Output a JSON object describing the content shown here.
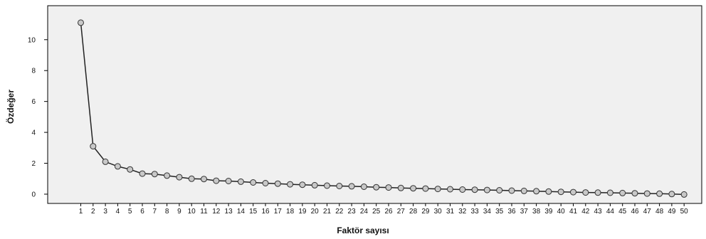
{
  "chart_data": {
    "type": "line",
    "title": "",
    "xlabel": "Faktör sayısı",
    "ylabel": "Özdeğer",
    "x": [
      1,
      2,
      3,
      4,
      5,
      6,
      7,
      8,
      9,
      10,
      11,
      12,
      13,
      14,
      15,
      16,
      17,
      18,
      19,
      20,
      21,
      22,
      23,
      24,
      25,
      26,
      27,
      28,
      29,
      30,
      31,
      32,
      33,
      34,
      35,
      36,
      37,
      38,
      39,
      40,
      41,
      42,
      43,
      44,
      45,
      46,
      47,
      48,
      49,
      50
    ],
    "x_ticks": [
      "1",
      "2",
      "3",
      "4",
      "5",
      "6",
      "7",
      "8",
      "9",
      "10",
      "11",
      "12",
      "13",
      "14",
      "15",
      "16",
      "17",
      "18",
      "19",
      "20",
      "21",
      "22",
      "23",
      "24",
      "25",
      "26",
      "27",
      "28",
      "29",
      "30",
      "31",
      "32",
      "33",
      "34",
      "35",
      "36",
      "37",
      "38",
      "39",
      "40",
      "41",
      "42",
      "43",
      "44",
      "45",
      "46",
      "47",
      "48",
      "49",
      "50"
    ],
    "y_ticks": [
      "0",
      "2",
      "4",
      "6",
      "8",
      "10"
    ],
    "ylim": [
      -0.6,
      12.2
    ],
    "series": [
      {
        "name": "",
        "values": [
          11.1,
          3.1,
          2.1,
          1.8,
          1.6,
          1.33,
          1.3,
          1.2,
          1.1,
          1.0,
          0.98,
          0.87,
          0.85,
          0.81,
          0.76,
          0.71,
          0.68,
          0.64,
          0.61,
          0.58,
          0.55,
          0.53,
          0.51,
          0.48,
          0.45,
          0.43,
          0.4,
          0.38,
          0.36,
          0.34,
          0.32,
          0.3,
          0.29,
          0.27,
          0.25,
          0.23,
          0.21,
          0.19,
          0.17,
          0.15,
          0.13,
          0.11,
          0.1,
          0.09,
          0.07,
          0.06,
          0.04,
          0.03,
          0.01,
          -0.02
        ]
      }
    ],
    "grid": false,
    "colors": {
      "plot_background": "#f0f0f0",
      "line": "#222222",
      "marker_fill": "#c8c8c8",
      "marker_stroke": "#333333"
    }
  }
}
